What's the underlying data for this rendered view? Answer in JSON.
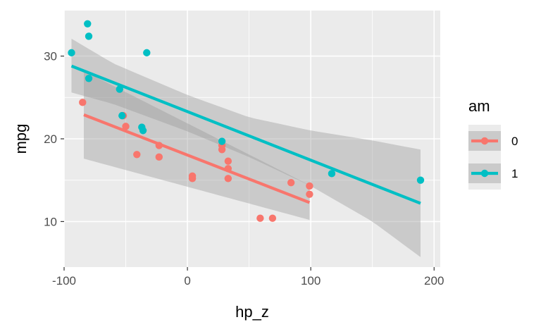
{
  "chart_data": {
    "type": "scatter",
    "xlabel": "hp_z",
    "ylabel": "mpg",
    "xlim": [
      -100,
      205
    ],
    "ylim": [
      4.5,
      35.5
    ],
    "x_ticks": [
      -100,
      0,
      100,
      200
    ],
    "x_tick_labels": [
      "-100",
      "0",
      "100",
      "200"
    ],
    "y_ticks": [
      10,
      20,
      30
    ],
    "y_tick_labels": [
      "10",
      "20",
      "30"
    ],
    "grid": true,
    "legend": {
      "title": "am",
      "position": "right"
    },
    "series": [
      {
        "name": "0",
        "color": "#F8766D",
        "points": [
          [
            -85,
            24.4
          ],
          [
            -52,
            22.8
          ],
          [
            -50,
            21.5
          ],
          [
            -41,
            18.1
          ],
          [
            -23,
            19.2
          ],
          [
            -23,
            17.8
          ],
          [
            4,
            15.5
          ],
          [
            4,
            15.2
          ],
          [
            28,
            18.7
          ],
          [
            28,
            19.2
          ],
          [
            33,
            17.3
          ],
          [
            33,
            16.4
          ],
          [
            33,
            15.2
          ],
          [
            59,
            10.4
          ],
          [
            69,
            10.4
          ],
          [
            84,
            14.7
          ],
          [
            99,
            14.3
          ],
          [
            99,
            13.3
          ]
        ],
        "fit": {
          "x": [
            -84,
            99
          ],
          "y": [
            22.9,
            12.3
          ]
        },
        "band": {
          "x": [
            -84,
            99
          ],
          "lower": [
            17.6,
            10.2
          ],
          "upper": [
            28.2,
            14.4
          ]
        }
      },
      {
        "name": "1",
        "color": "#00BFC4",
        "points": [
          [
            -94,
            30.4
          ],
          [
            -81,
            33.9
          ],
          [
            -80,
            32.4
          ],
          [
            -80,
            27.3
          ],
          [
            -55,
            26.0
          ],
          [
            -53,
            22.8
          ],
          [
            -37,
            21.4
          ],
          [
            -36,
            21.0
          ],
          [
            -33,
            30.4
          ],
          [
            28,
            19.7
          ],
          [
            117,
            15.8
          ],
          [
            189,
            15.0
          ]
        ],
        "fit": {
          "x": [
            -94,
            189
          ],
          "y": [
            28.8,
            12.2
          ]
        },
        "band": {
          "x": [
            -94,
            -60,
            0,
            50,
            100,
            150,
            189
          ],
          "lower": [
            25.6,
            24.2,
            20.9,
            17.8,
            14.3,
            10.0,
            5.7
          ],
          "upper": [
            32.1,
            29.1,
            25.3,
            22.6,
            21.0,
            19.8,
            18.7
          ]
        }
      }
    ]
  }
}
